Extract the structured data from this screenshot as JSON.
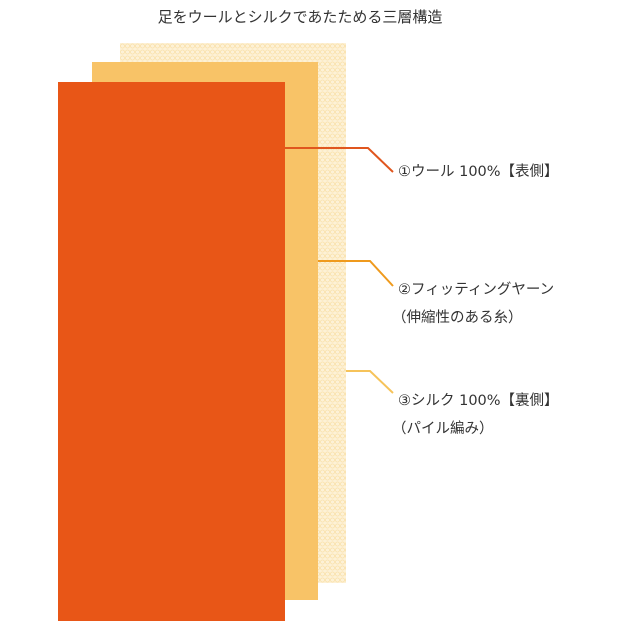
{
  "title": "足をウールとシルクであたためる三層構造",
  "colors": {
    "wool": "#e85617",
    "fitting": "#f8c367",
    "silk": "#fdf1d6",
    "line_wool": "#e0561e",
    "line_fitting": "#ef9a1d",
    "line_silk": "#f6c35a"
  },
  "labels": [
    {
      "line1": "①ウール 100%【表側】"
    },
    {
      "line1": "②フィッティングヤーン",
      "line2": "（伸縮性のある糸）"
    },
    {
      "line1": "③シルク 100%【裏側】",
      "line2": "（パイル編み）"
    }
  ]
}
